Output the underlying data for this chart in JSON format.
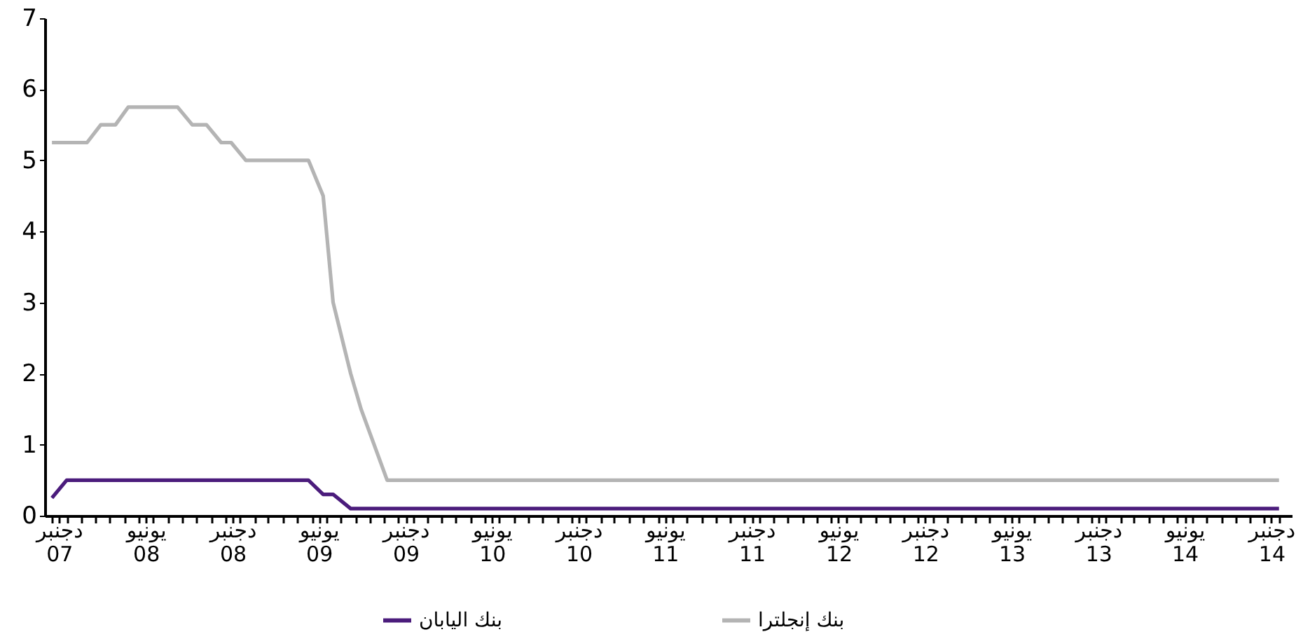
{
  "chart_data": {
    "type": "line",
    "xlim": [
      "2007-11-16",
      "2015-01-28"
    ],
    "ylim": [
      0,
      7
    ],
    "yticks": [
      0,
      1,
      2,
      3,
      4,
      5,
      6,
      7
    ],
    "xticks": [
      {
        "value": "2007-12-01",
        "label": null
      },
      {
        "value": "2008-01-01",
        "label": null
      },
      {
        "value": "2008-02-01",
        "label": null
      },
      {
        "value": "2008-03-01",
        "label": null
      },
      {
        "value": "2008-04-01",
        "label": null
      },
      {
        "value": "2008-05-01",
        "label": null
      },
      {
        "value": "2008-06-01",
        "label": null
      },
      {
        "value": "2008-07-01",
        "label": null
      },
      {
        "value": "2008-08-01",
        "label": null
      },
      {
        "value": "2008-09-01",
        "label": null
      },
      {
        "value": "2008-10-01",
        "label": null
      },
      {
        "value": "2008-11-01",
        "label": null
      },
      {
        "value": "2008-12-01",
        "label": null
      },
      {
        "value": "2009-01-01",
        "label": null
      },
      {
        "value": "2009-02-01",
        "label": null
      },
      {
        "value": "2009-03-01",
        "label": null
      },
      {
        "value": "2009-04-01",
        "label": null
      },
      {
        "value": "2009-05-01",
        "label": null
      },
      {
        "value": "2009-06-01",
        "label": null
      },
      {
        "value": "2009-07-01",
        "label": null
      },
      {
        "value": "2009-08-01",
        "label": null
      },
      {
        "value": "2009-09-01",
        "label": null
      },
      {
        "value": "2009-10-01",
        "label": null
      },
      {
        "value": "2009-11-01",
        "label": null
      },
      {
        "value": "2009-12-01",
        "label": null
      },
      {
        "value": "2010-01-01",
        "label": null
      },
      {
        "value": "2010-02-01",
        "label": null
      },
      {
        "value": "2010-03-01",
        "label": null
      },
      {
        "value": "2010-04-01",
        "label": null
      },
      {
        "value": "2010-05-01",
        "label": null
      },
      {
        "value": "2010-06-01",
        "label": null
      },
      {
        "value": "2010-07-01",
        "label": null
      },
      {
        "value": "2010-08-01",
        "label": null
      },
      {
        "value": "2010-09-01",
        "label": null
      },
      {
        "value": "2010-10-01",
        "label": null
      },
      {
        "value": "2010-11-01",
        "label": null
      },
      {
        "value": "2010-12-01",
        "label": null
      },
      {
        "value": "2011-01-01",
        "label": null
      },
      {
        "value": "2011-02-01",
        "label": null
      },
      {
        "value": "2011-03-01",
        "label": null
      },
      {
        "value": "2011-04-01",
        "label": null
      },
      {
        "value": "2011-05-01",
        "label": null
      },
      {
        "value": "2011-06-01",
        "label": null
      },
      {
        "value": "2011-07-01",
        "label": null
      },
      {
        "value": "2011-08-01",
        "label": null
      },
      {
        "value": "2011-09-01",
        "label": null
      },
      {
        "value": "2011-10-01",
        "label": null
      },
      {
        "value": "2011-11-01",
        "label": null
      },
      {
        "value": "2011-12-01",
        "label": null
      },
      {
        "value": "2012-01-01",
        "label": null
      },
      {
        "value": "2012-02-01",
        "label": null
      },
      {
        "value": "2012-03-01",
        "label": null
      },
      {
        "value": "2012-04-01",
        "label": null
      },
      {
        "value": "2012-05-01",
        "label": null
      },
      {
        "value": "2012-06-01",
        "label": null
      },
      {
        "value": "2012-07-01",
        "label": null
      },
      {
        "value": "2012-08-01",
        "label": null
      },
      {
        "value": "2012-09-01",
        "label": null
      },
      {
        "value": "2012-10-01",
        "label": null
      },
      {
        "value": "2012-11-01",
        "label": null
      },
      {
        "value": "2012-12-01",
        "label": null
      },
      {
        "value": "2013-01-01",
        "label": null
      },
      {
        "value": "2013-02-01",
        "label": null
      },
      {
        "value": "2013-03-01",
        "label": null
      },
      {
        "value": "2013-04-01",
        "label": null
      },
      {
        "value": "2013-05-01",
        "label": null
      },
      {
        "value": "2013-06-01",
        "label": null
      },
      {
        "value": "2013-07-01",
        "label": null
      },
      {
        "value": "2013-08-01",
        "label": null
      },
      {
        "value": "2013-09-01",
        "label": null
      },
      {
        "value": "2013-10-01",
        "label": null
      },
      {
        "value": "2013-11-01",
        "label": null
      },
      {
        "value": "2013-12-01",
        "label": null
      },
      {
        "value": "2014-01-01",
        "label": null
      },
      {
        "value": "2014-02-01",
        "label": null
      },
      {
        "value": "2014-03-01",
        "label": null
      },
      {
        "value": "2014-04-01",
        "label": null
      },
      {
        "value": "2014-05-01",
        "label": null
      },
      {
        "value": "2014-06-01",
        "label": null
      },
      {
        "value": "2014-07-01",
        "label": null
      },
      {
        "value": "2014-08-01",
        "label": null
      },
      {
        "value": "2014-09-01",
        "label": null
      },
      {
        "value": "2014-10-01",
        "label": null
      },
      {
        "value": "2014-11-01",
        "label": null
      },
      {
        "value": "2014-12-01",
        "label": null
      },
      {
        "value": "2015-01-01",
        "label": null
      },
      {
        "value": "2007-12-16",
        "label": "دجنبر 07"
      },
      {
        "value": "2008-06-16",
        "label": "يونيو 08"
      },
      {
        "value": "2008-12-16",
        "label": "دجنبر 08"
      },
      {
        "value": "2009-06-16",
        "label": "يونيو 09"
      },
      {
        "value": "2009-12-16",
        "label": "دجنبر 09"
      },
      {
        "value": "2010-06-16",
        "label": "يونيو 10"
      },
      {
        "value": "2010-12-16",
        "label": "دجنبر 10"
      },
      {
        "value": "2011-06-16",
        "label": "يونيو 11"
      },
      {
        "value": "2011-12-16",
        "label": "دجنبر 11"
      },
      {
        "value": "2012-06-16",
        "label": "يونيو 12"
      },
      {
        "value": "2012-12-16",
        "label": "دجنبر 12"
      },
      {
        "value": "2013-06-16",
        "label": "يونيو 13"
      },
      {
        "value": "2013-12-16",
        "label": "دجنبر 13"
      },
      {
        "value": "2014-06-16",
        "label": "يونيو 14"
      },
      {
        "value": "2014-12-16",
        "label": "دجنبر 14"
      }
    ],
    "grid": false,
    "legend": "bottom",
    "line_style": "solid",
    "series": [
      {
        "name": "بنك اليابان",
        "color": "#4b1c7c",
        "x": [
          "2007-12-01",
          "2008-01-01",
          "2009-05-25",
          "2009-06-25",
          "2009-07-16",
          "2009-08-22",
          "2015-01-01"
        ],
        "values": [
          0.25,
          0.5,
          0.5,
          0.3,
          0.3,
          0.1,
          0.1
        ]
      },
      {
        "name": "بنك إنجلترا",
        "color": "#b4b4b4",
        "x": [
          "2007-12-01",
          "2008-02-13",
          "2008-03-13",
          "2008-04-13",
          "2008-05-10",
          "2008-08-22",
          "2008-09-22",
          "2008-10-22",
          "2008-11-22",
          "2008-12-13",
          "2009-01-13",
          "2009-05-25",
          "2009-06-25",
          "2009-07-16",
          "2009-08-22",
          "2009-09-13",
          "2009-11-07",
          "2015-01-01"
        ],
        "values": [
          5.25,
          5.25,
          5.5,
          5.5,
          5.75,
          5.75,
          5.5,
          5.5,
          5.25,
          5.25,
          5,
          5,
          4.5,
          3,
          2,
          1.5,
          0.5,
          0.5
        ]
      }
    ]
  }
}
